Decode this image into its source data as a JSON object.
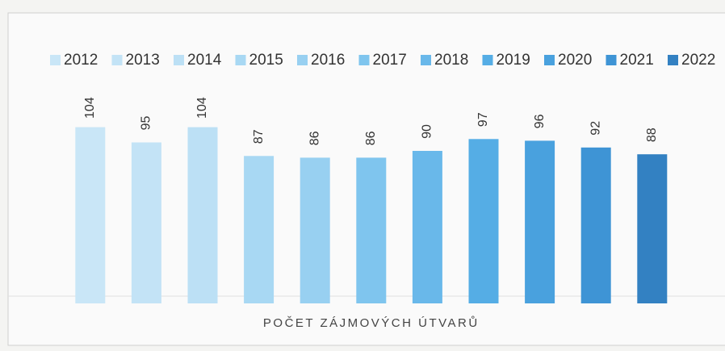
{
  "chart_data": {
    "type": "bar",
    "categories": [
      "POČET ZÁJMOVÝCH ÚTVARŮ"
    ],
    "series": [
      {
        "name": "2012",
        "color": "#c9e6f7",
        "values": [
          104
        ]
      },
      {
        "name": "2013",
        "color": "#c3e3f6",
        "values": [
          95
        ]
      },
      {
        "name": "2014",
        "color": "#bce0f5",
        "values": [
          104
        ]
      },
      {
        "name": "2015",
        "color": "#a8d8f3",
        "values": [
          87
        ]
      },
      {
        "name": "2016",
        "color": "#98d0f1",
        "values": [
          86
        ]
      },
      {
        "name": "2017",
        "color": "#7fc5ee",
        "values": [
          86
        ]
      },
      {
        "name": "2018",
        "color": "#69b8ea",
        "values": [
          90
        ]
      },
      {
        "name": "2019",
        "color": "#55ade5",
        "values": [
          97
        ]
      },
      {
        "name": "2020",
        "color": "#49a1de",
        "values": [
          96
        ]
      },
      {
        "name": "2021",
        "color": "#3e94d5",
        "values": [
          92
        ]
      },
      {
        "name": "2022",
        "color": "#3381c2",
        "values": [
          88
        ]
      }
    ],
    "ylim": [
      0,
      110
    ],
    "legend": "top"
  }
}
